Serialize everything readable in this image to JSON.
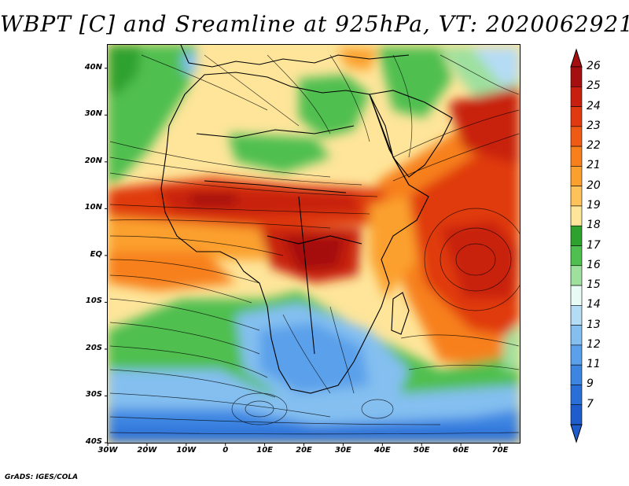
{
  "title": "WBPT [C] and Sreamline at 925hPa, VT: 2020062921",
  "map": {
    "lat_range": [
      -40,
      45
    ],
    "lon_range": [
      -30,
      75
    ],
    "lat_labels": [
      {
        "lat": 40,
        "text": "40N"
      },
      {
        "lat": 30,
        "text": "30N"
      },
      {
        "lat": 20,
        "text": "20N"
      },
      {
        "lat": 10,
        "text": "10N"
      },
      {
        "lat": 0,
        "text": "EQ"
      },
      {
        "lat": -10,
        "text": "10S"
      },
      {
        "lat": -20,
        "text": "20S"
      },
      {
        "lat": -30,
        "text": "30S"
      },
      {
        "lat": -40,
        "text": "40S"
      }
    ],
    "lon_labels": [
      {
        "lon": -30,
        "text": "30W"
      },
      {
        "lon": -20,
        "text": "20W"
      },
      {
        "lon": -10,
        "text": "10W"
      },
      {
        "lon": 0,
        "text": "0"
      },
      {
        "lon": 10,
        "text": "10E"
      },
      {
        "lon": 20,
        "text": "20E"
      },
      {
        "lon": 30,
        "text": "30E"
      },
      {
        "lon": 40,
        "text": "40E"
      },
      {
        "lon": 50,
        "text": "50E"
      },
      {
        "lon": 60,
        "text": "60E"
      },
      {
        "lon": 70,
        "text": "70E"
      }
    ]
  },
  "colorbar": {
    "units": "C",
    "levels": [
      {
        "label": "26",
        "color": "#a50f0f"
      },
      {
        "label": "25",
        "color": "#c8200f"
      },
      {
        "label": "24",
        "color": "#e03a10"
      },
      {
        "label": "23",
        "color": "#ef5a14"
      },
      {
        "label": "22",
        "color": "#f7801c"
      },
      {
        "label": "21",
        "color": "#fba02e"
      },
      {
        "label": "20",
        "color": "#fdc25a"
      },
      {
        "label": "19",
        "color": "#fee59a"
      },
      {
        "label": "18",
        "color": "#2ea12e"
      },
      {
        "label": "17",
        "color": "#4fbf4f"
      },
      {
        "label": "16",
        "color": "#9ee09e"
      },
      {
        "label": "15",
        "color": "#e8fbf5"
      },
      {
        "label": "14",
        "color": "#b5dcf5"
      },
      {
        "label": "13",
        "color": "#84bff0"
      },
      {
        "label": "12",
        "color": "#5aa0ea"
      },
      {
        "label": "11",
        "color": "#3c86e2"
      },
      {
        "label": "9",
        "color": "#2a6fd8"
      },
      {
        "label": "7",
        "color": "#1f5ccc"
      }
    ]
  },
  "footer": "GrADS: IGES/COLA"
}
